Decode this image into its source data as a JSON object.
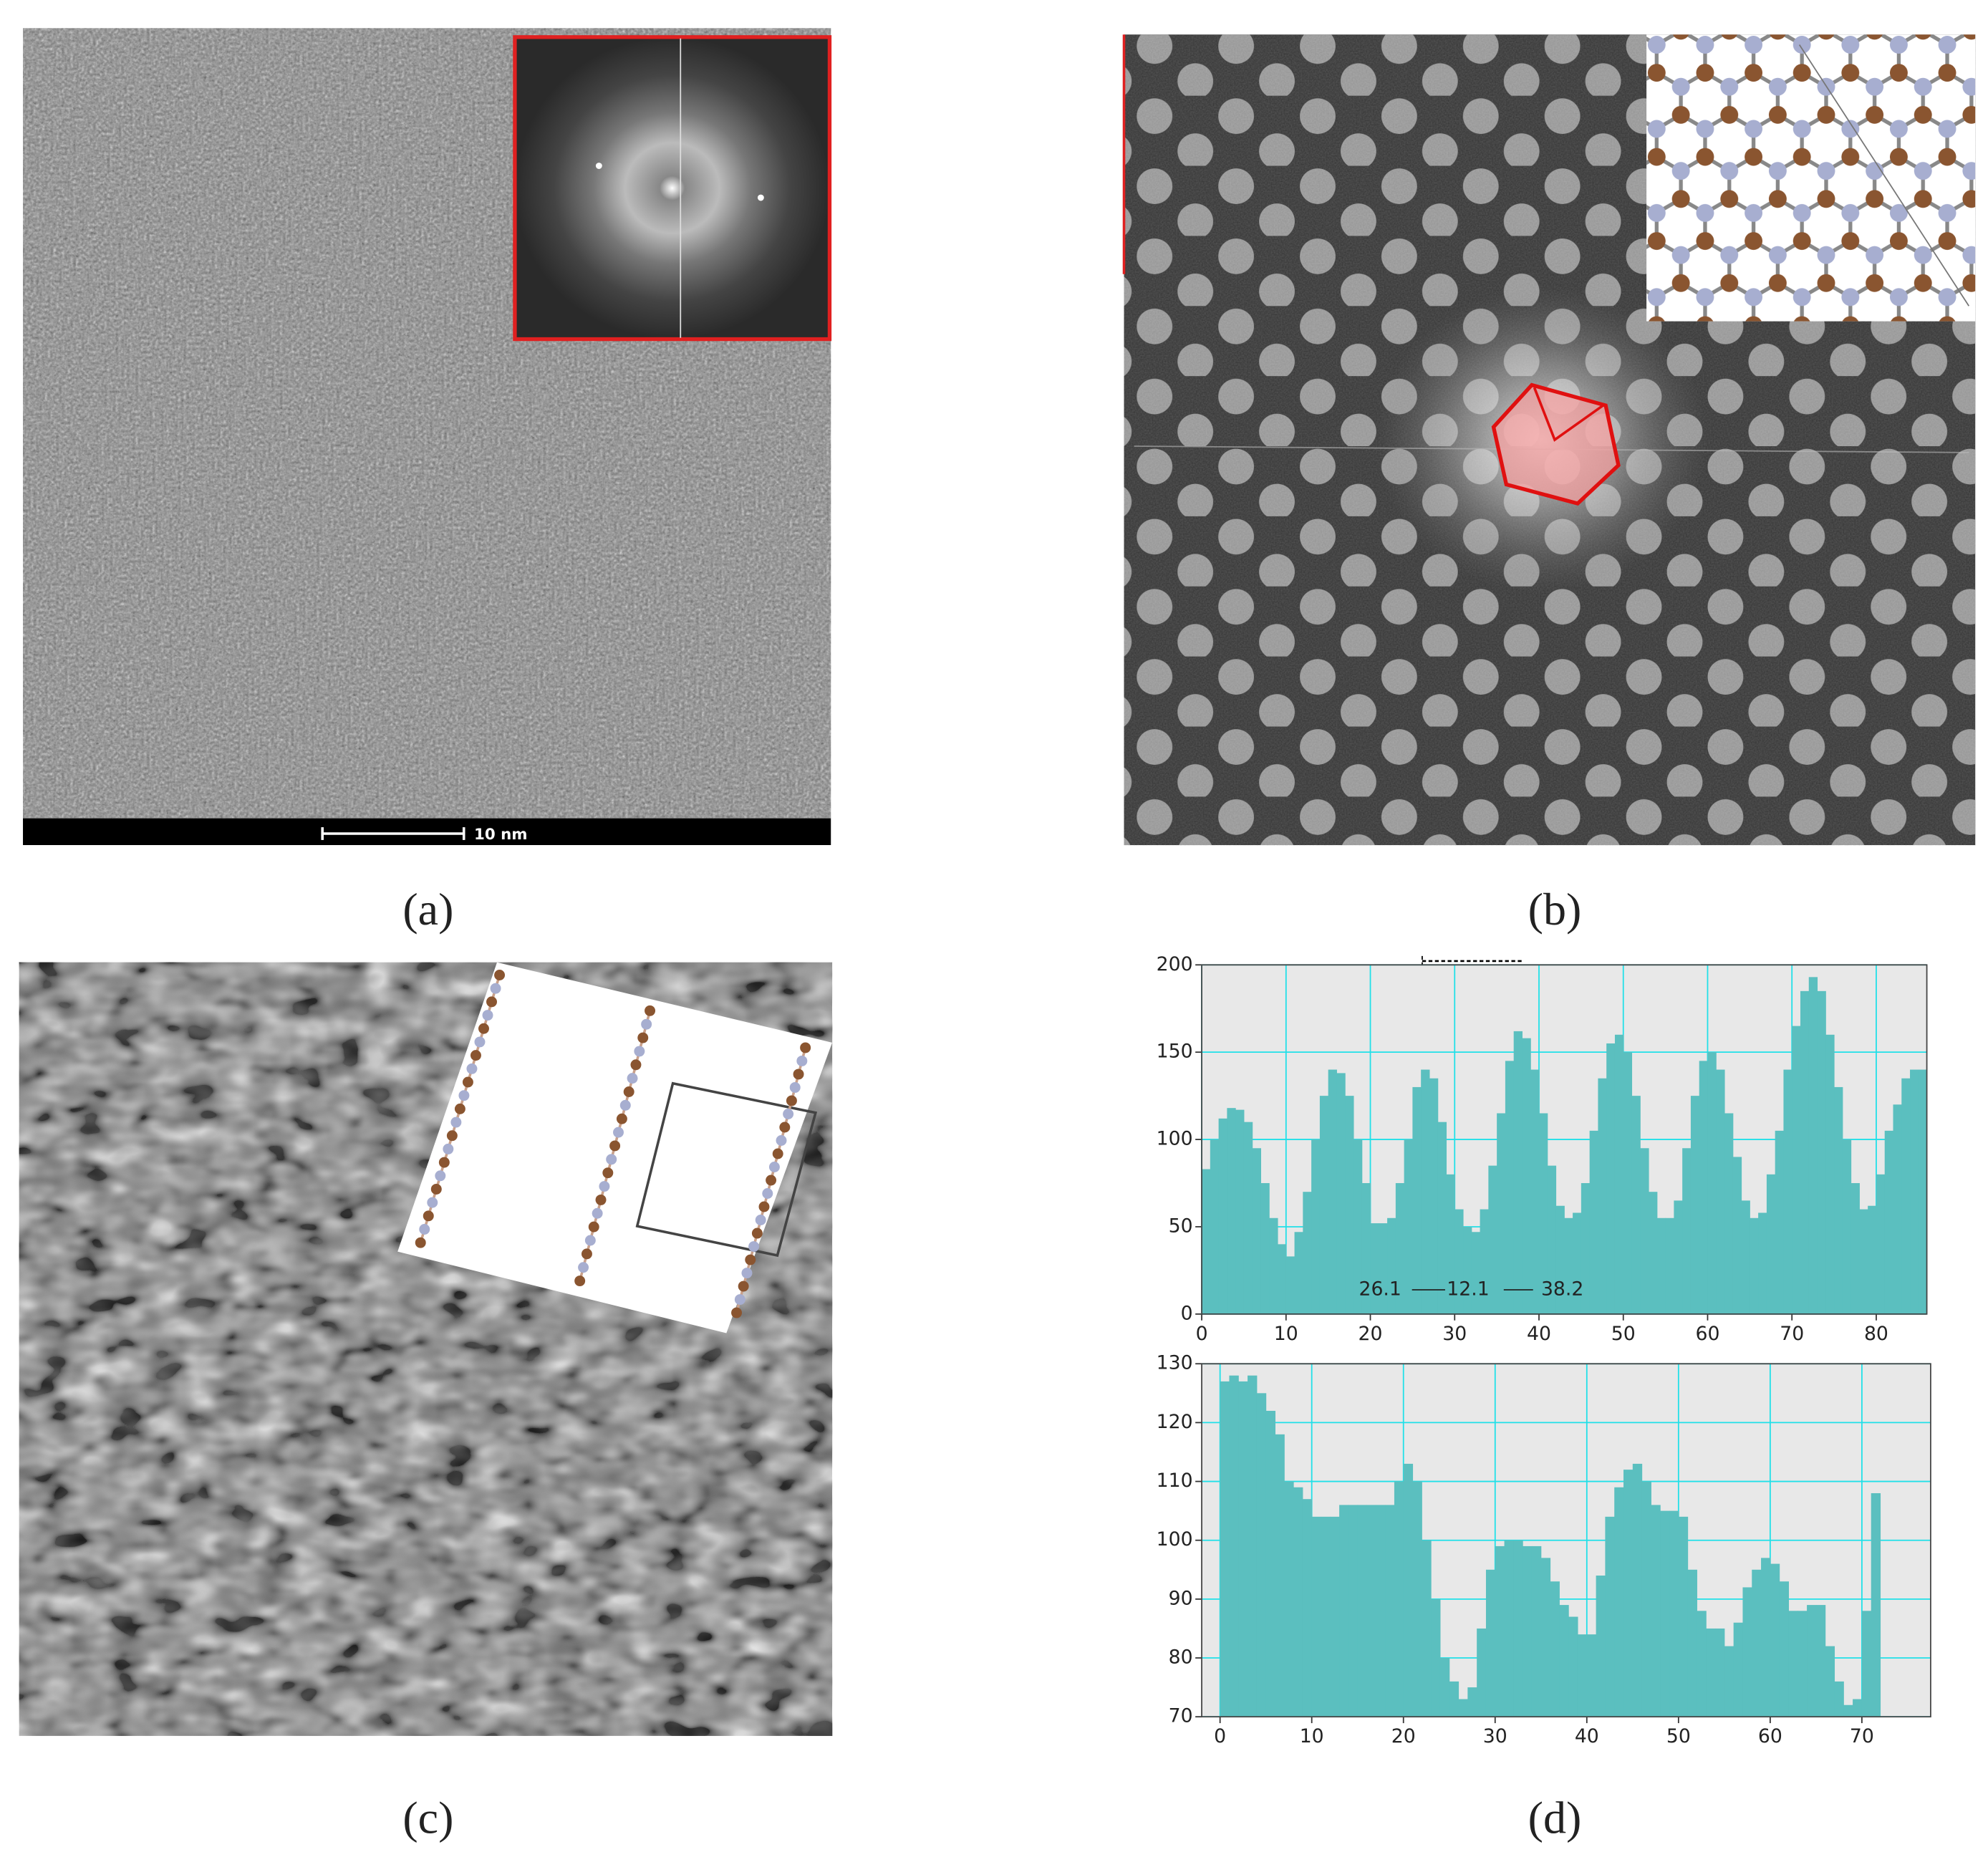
{
  "panel_labels": [
    "(a)",
    "(b)",
    "(c)",
    "(d)"
  ],
  "scale_bar": "10 nm",
  "chart_data": [
    {
      "type": "bar",
      "color": "#5bbfbf",
      "grid": true,
      "annotations": [
        "26.1",
        "12.1",
        "38.2"
      ],
      "x": [
        0,
        1,
        2,
        3,
        4,
        5,
        6,
        7,
        8,
        9,
        10,
        11,
        12,
        13,
        14,
        15,
        16,
        17,
        18,
        19,
        20,
        21,
        22,
        23,
        24,
        25,
        26,
        27,
        28,
        29,
        30,
        31,
        32,
        33,
        34,
        35,
        36,
        37,
        38,
        39,
        40,
        41,
        42,
        43,
        44,
        45,
        46,
        47,
        48,
        49,
        50,
        51,
        52,
        53,
        54,
        55,
        56,
        57,
        58,
        59,
        60,
        61,
        62,
        63,
        64,
        65,
        66,
        67,
        68,
        69,
        70,
        71,
        72,
        73,
        74,
        75,
        76,
        77,
        78,
        79,
        80,
        81,
        82,
        83,
        84,
        85
      ],
      "values": [
        83,
        100,
        112,
        118,
        117,
        110,
        95,
        75,
        55,
        40,
        33,
        47,
        70,
        100,
        125,
        140,
        138,
        125,
        100,
        75,
        52,
        52,
        55,
        75,
        100,
        130,
        140,
        135,
        110,
        80,
        60,
        50,
        47,
        60,
        85,
        115,
        145,
        162,
        158,
        140,
        115,
        85,
        62,
        55,
        58,
        75,
        105,
        135,
        155,
        160,
        150,
        125,
        95,
        70,
        55,
        55,
        65,
        95,
        125,
        145,
        150,
        140,
        115,
        90,
        65,
        55,
        58,
        80,
        105,
        140,
        165,
        185,
        193,
        185,
        160,
        130,
        100,
        75,
        60,
        62,
        80,
        105,
        120,
        135,
        140,
        140
      ],
      "xlim": [
        0,
        86
      ],
      "xticks": [
        0,
        10,
        20,
        30,
        40,
        50,
        60,
        70,
        80
      ],
      "ylim": [
        0,
        200
      ],
      "yticks": [
        0,
        50,
        100,
        150,
        200
      ]
    },
    {
      "type": "bar",
      "color": "#5bbfbf",
      "grid": true,
      "x": [
        0,
        1,
        2,
        3,
        4,
        5,
        6,
        7,
        8,
        9,
        10,
        11,
        12,
        13,
        14,
        15,
        16,
        17,
        18,
        19,
        20,
        21,
        22,
        23,
        24,
        25,
        26,
        27,
        28,
        29,
        30,
        31,
        32,
        33,
        34,
        35,
        36,
        37,
        38,
        39,
        40,
        41,
        42,
        43,
        44,
        45,
        46,
        47,
        48,
        49,
        50,
        51,
        52,
        53,
        54,
        55,
        56,
        57,
        58,
        59,
        60,
        61,
        62,
        63,
        64,
        65,
        66,
        67,
        68,
        69,
        70,
        71
      ],
      "values": [
        127,
        128,
        127,
        128,
        125,
        122,
        118,
        110,
        109,
        107,
        104,
        104,
        104,
        106,
        106,
        106,
        106,
        106,
        106,
        110,
        113,
        110,
        100,
        90,
        80,
        76,
        73,
        75,
        85,
        95,
        99,
        100,
        100,
        99,
        99,
        97,
        93,
        89,
        87,
        84,
        84,
        94,
        104,
        109,
        112,
        113,
        110,
        106,
        105,
        105,
        104,
        95,
        88,
        85,
        85,
        82,
        86,
        92,
        95,
        97,
        96,
        93,
        88,
        88,
        89,
        89,
        82,
        76,
        72,
        73,
        88,
        108
      ],
      "xlim": [
        -2,
        77.5
      ],
      "xticks": [
        0,
        10,
        20,
        30,
        40,
        50,
        60,
        70
      ],
      "ylim": [
        70,
        130
      ],
      "yticks": [
        70,
        80,
        90,
        100,
        110,
        120,
        130
      ]
    }
  ]
}
